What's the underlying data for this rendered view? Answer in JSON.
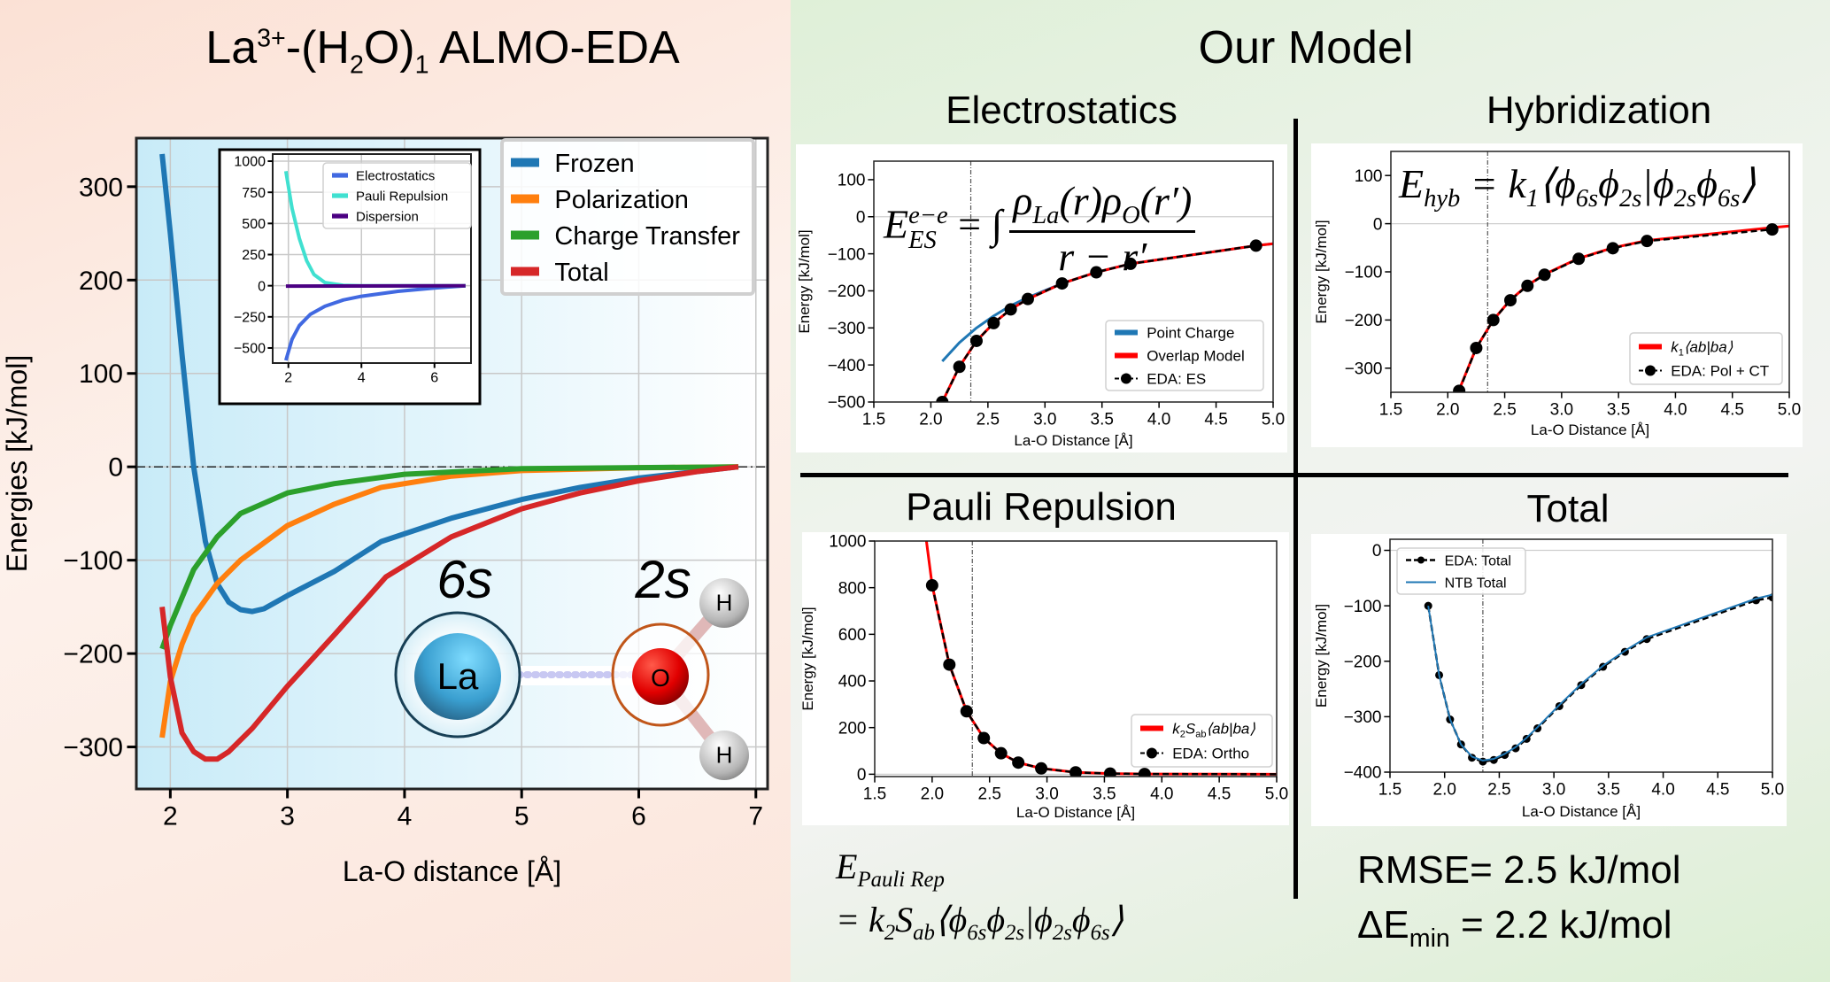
{
  "left": {
    "title_parts": {
      "a": "La",
      "charge": "3+",
      "b": "-(H",
      "h2": "2",
      "c": "O)",
      "n": "1",
      "d": " ALMO-EDA"
    },
    "illustration": {
      "la_orbital": "6s",
      "o_orbital": "2s",
      "la": "La",
      "o": "O",
      "h": "H"
    }
  },
  "right": {
    "title": "Our Model",
    "sections": {
      "electrostatics": "Electrostatics",
      "hybridization": "Hybridization",
      "pauli": "Pauli Repulsion",
      "total": "Total"
    },
    "formulas": {
      "es": {
        "E": "E",
        "sub": "ES",
        "sup": "e−e",
        "eq": "= ∫",
        "num": "ρ",
        "num_sub1": "La",
        "num_mid": "(r)ρ",
        "num_sub2": "O",
        "num_end": "(r′)",
        "den": "r − r′"
      },
      "hyb": {
        "E": "E",
        "sub": "hyb",
        "rest": " = k",
        "k_sub": "1",
        "bra": "⟨ϕ",
        "s1": "6s",
        "p2": "ϕ",
        "s2": "2s",
        "bar": "|ϕ",
        "s3": "2s",
        "p4": "ϕ",
        "s4": "6s",
        "ket": "⟩"
      },
      "pauli": {
        "E": "E",
        "sub": "Pauli Rep",
        "eq": "= k",
        "k_sub": "2",
        "S": "S",
        "S_sub": "ab",
        "bra": "⟨ϕ",
        "s1": "6s",
        "p2": "ϕ",
        "s2": "2s",
        "bar": "|ϕ",
        "s3": "2s",
        "p4": "ϕ",
        "s4": "6s",
        "ket": "⟩"
      }
    },
    "stats": {
      "rmse": "RMSE= 2.5 kJ/mol",
      "de_prefix": "ΔE",
      "de_sub": "min",
      "de_rest": " = 2.2 kJ/mol"
    }
  },
  "chart_data": [
    {
      "id": "main",
      "type": "line",
      "title": "La3+-(H2O)1 ALMO-EDA",
      "xlabel": "La-O distance [Å]",
      "ylabel": "Energies [kJ/mol]",
      "xlim": [
        1.71,
        7.1
      ],
      "ylim": [
        -345,
        352
      ],
      "grid": true,
      "hline0": "dashdot",
      "xticks": [
        "2",
        "3",
        "4",
        "5",
        "6",
        "7"
      ],
      "yticks": [
        "−300",
        "−200",
        "−100",
        "0",
        "100",
        "200",
        "300"
      ],
      "legend_position": "top-right",
      "series": [
        {
          "name": "Frozen",
          "color": "#1f77b4",
          "x": [
            1.93,
            2.0,
            2.1,
            2.2,
            2.3,
            2.4,
            2.5,
            2.6,
            2.7,
            2.8,
            3.0,
            3.4,
            3.8,
            4.4,
            5.0,
            5.5,
            6.0,
            6.5,
            6.85
          ],
          "y": [
            335,
            250,
            120,
            0,
            -80,
            -125,
            -145,
            -153,
            -155,
            -152,
            -138,
            -112,
            -80,
            -55,
            -35,
            -22,
            -12,
            -5,
            0
          ]
        },
        {
          "name": "Polarization",
          "color": "#ff7f0e",
          "x": [
            1.93,
            2.0,
            2.1,
            2.2,
            2.4,
            2.6,
            3.0,
            3.4,
            3.8,
            4.4,
            5.0,
            6.0,
            6.85
          ],
          "y": [
            -290,
            -230,
            -190,
            -160,
            -125,
            -100,
            -63,
            -40,
            -22,
            -10,
            -4,
            -1,
            0
          ]
        },
        {
          "name": "Charge Transfer",
          "color": "#2ca02c",
          "x": [
            1.93,
            2.0,
            2.2,
            2.4,
            2.6,
            3.0,
            3.4,
            4.0,
            5.0,
            6.85
          ],
          "y": [
            -195,
            -170,
            -110,
            -75,
            -50,
            -28,
            -18,
            -8,
            -2,
            0
          ]
        },
        {
          "name": "Total",
          "color": "#d62728",
          "x": [
            1.93,
            2.0,
            2.1,
            2.2,
            2.3,
            2.4,
            2.5,
            2.7,
            3.0,
            3.4,
            3.84,
            4.4,
            5.0,
            5.5,
            6.0,
            6.5,
            6.85
          ],
          "y": [
            -150,
            -225,
            -285,
            -305,
            -313,
            -313,
            -305,
            -280,
            -235,
            -180,
            -118,
            -75,
            -45,
            -28,
            -15,
            -5,
            0
          ]
        }
      ]
    },
    {
      "id": "inset",
      "type": "line",
      "xlim": [
        1.57,
        7.0
      ],
      "ylim": [
        -621,
        1057
      ],
      "grid": true,
      "xticks": [
        "2",
        "4",
        "6"
      ],
      "yticks": [
        "−500",
        "−250",
        "0",
        "250",
        "500",
        "750",
        "1000"
      ],
      "legend_position": "top-right",
      "series": [
        {
          "name": "Electrostatics",
          "color": "#4169e1",
          "x": [
            1.93,
            2.1,
            2.3,
            2.6,
            3.0,
            3.5,
            4.0,
            5.0,
            6.0,
            6.85
          ],
          "y": [
            -600,
            -430,
            -320,
            -230,
            -165,
            -115,
            -85,
            -45,
            -18,
            0
          ]
        },
        {
          "name": "Pauli Repulsion",
          "color": "#40e0d0",
          "x": [
            1.93,
            2.1,
            2.3,
            2.5,
            2.7,
            3.0,
            3.5,
            4.0,
            6.85
          ],
          "y": [
            920,
            620,
            380,
            200,
            90,
            25,
            3,
            0,
            0
          ]
        },
        {
          "name": "Dispersion",
          "color": "#4b0082",
          "x": [
            1.93,
            6.85
          ],
          "y": [
            -3,
            0
          ]
        }
      ]
    },
    {
      "id": "electrostatics",
      "type": "line",
      "xlabel": "La-O Distance [Å]",
      "ylabel": "Energy [kJ/mol]",
      "xlim": [
        1.5,
        5.0
      ],
      "ylim": [
        -500,
        150
      ],
      "vline": 2.35,
      "xticks": [
        "1.5",
        "2.0",
        "2.5",
        "3.0",
        "3.5",
        "4.0",
        "4.5",
        "5.0"
      ],
      "yticks": [
        "−500",
        "−400",
        "−300",
        "−200",
        "−100",
        "0",
        "100"
      ],
      "legend_position": "lower-right",
      "series": [
        {
          "name": "Point Charge",
          "color": "#1f77b4",
          "x": [
            2.1,
            2.25,
            2.4,
            2.55,
            2.7,
            2.85,
            3.15,
            3.45,
            3.75,
            4.85,
            5.0
          ],
          "y": [
            -390,
            -340,
            -300,
            -268,
            -240,
            -218,
            -180,
            -150,
            -127,
            -78,
            -73
          ]
        },
        {
          "name": "Overlap Model",
          "color": "#ff0000",
          "x": [
            2.1,
            2.25,
            2.4,
            2.55,
            2.7,
            2.85,
            3.15,
            3.45,
            3.75,
            4.85,
            5.0
          ],
          "y": [
            -500,
            -405,
            -335,
            -287,
            -250,
            -222,
            -180,
            -150,
            -127,
            -78,
            -73
          ]
        },
        {
          "name": "EDA: ES",
          "color": "#000000",
          "dashed": true,
          "markers": true,
          "x": [
            2.1,
            2.25,
            2.4,
            2.55,
            2.7,
            2.85,
            3.15,
            3.45,
            3.75,
            4.85
          ],
          "y": [
            -500,
            -405,
            -335,
            -287,
            -250,
            -222,
            -180,
            -150,
            -127,
            -78
          ]
        }
      ]
    },
    {
      "id": "hybridization",
      "type": "line",
      "xlabel": "La-O Distance [Å]",
      "ylabel": "Energy [kJ/mol]",
      "xlim": [
        1.5,
        5.0
      ],
      "ylim": [
        -350,
        150
      ],
      "vline": 2.35,
      "xticks": [
        "1.5",
        "2.0",
        "2.5",
        "3.0",
        "3.5",
        "4.0",
        "4.5",
        "5.0"
      ],
      "yticks": [
        "−300",
        "−200",
        "−100",
        "0",
        "100"
      ],
      "legend_position": "lower-right",
      "series": [
        {
          "name": "k1⟨ab|ba⟩",
          "label_parts": [
            [
              "k",
              ""
            ],
            [
              "1",
              "sub"
            ],
            [
              "⟨ab|ba⟩",
              ""
            ]
          ],
          "color": "#ff0000",
          "x": [
            2.1,
            2.25,
            2.4,
            2.55,
            2.7,
            2.85,
            3.15,
            3.45,
            3.75,
            4.85,
            5.0
          ],
          "y": [
            -345,
            -258,
            -200,
            -158,
            -128,
            -105,
            -72,
            -50,
            -35,
            -8,
            -5
          ]
        },
        {
          "name": "EDA: Pol + CT",
          "color": "#000000",
          "dashed": true,
          "markers": true,
          "x": [
            2.1,
            2.25,
            2.4,
            2.55,
            2.7,
            2.85,
            3.15,
            3.45,
            3.75,
            4.85
          ],
          "y": [
            -347,
            -258,
            -200,
            -159,
            -129,
            -106,
            -73,
            -51,
            -36,
            -12
          ]
        }
      ]
    },
    {
      "id": "pauli",
      "type": "line",
      "xlabel": "La-O Distance [Å]",
      "ylabel": "Energy [kJ/mol]",
      "xlim": [
        1.5,
        5.0
      ],
      "ylim": [
        -10,
        1000
      ],
      "vline": 2.35,
      "xticks": [
        "1.5",
        "2.0",
        "2.5",
        "3.0",
        "3.5",
        "4.0",
        "4.5",
        "5.0"
      ],
      "yticks": [
        "0",
        "200",
        "400",
        "600",
        "800",
        "1000"
      ],
      "legend_position": "lower-right",
      "series": [
        {
          "name": "k2Sab⟨ab|ba⟩",
          "label_parts": [
            [
              "k",
              ""
            ],
            [
              "2",
              "sub"
            ],
            [
              "S",
              ""
            ],
            [
              "ab",
              "sub"
            ],
            [
              "⟨ab|ba⟩",
              ""
            ]
          ],
          "color": "#ff0000",
          "x": [
            1.95,
            2.0,
            2.15,
            2.3,
            2.45,
            2.6,
            2.75,
            2.95,
            3.25,
            3.55,
            3.85,
            5.0
          ],
          "y": [
            1000,
            810,
            470,
            270,
            155,
            90,
            50,
            25,
            8,
            3,
            1,
            0
          ]
        },
        {
          "name": "EDA: Ortho",
          "color": "#000000",
          "dashed": true,
          "markers": true,
          "x": [
            2.0,
            2.15,
            2.3,
            2.45,
            2.6,
            2.75,
            2.95,
            3.25,
            3.55,
            3.85,
            5.0
          ],
          "y": [
            810,
            470,
            270,
            155,
            90,
            50,
            25,
            8,
            3,
            1,
            0
          ],
          "marker_count": 10
        }
      ]
    },
    {
      "id": "total",
      "type": "line",
      "xlabel": "La-O Distance [Å]",
      "ylabel": "Energy [kJ/mol]",
      "xlim": [
        1.5,
        5.0
      ],
      "ylim": [
        -400,
        20
      ],
      "vline": 2.35,
      "xticks": [
        "1.5",
        "2.0",
        "2.5",
        "3.0",
        "3.5",
        "4.0",
        "4.5",
        "5.0"
      ],
      "yticks": [
        "−400",
        "−300",
        "−200",
        "−100",
        "0"
      ],
      "legend_position": "upper-left",
      "series": [
        {
          "name": "EDA: Total",
          "color": "#000000",
          "dashed": true,
          "markers": true,
          "small_markers": true,
          "x": [
            1.85,
            1.95,
            2.05,
            2.15,
            2.25,
            2.35,
            2.45,
            2.55,
            2.65,
            2.75,
            2.85,
            3.05,
            3.25,
            3.45,
            3.65,
            3.85,
            4.85,
            5.0
          ],
          "y": [
            -100,
            -225,
            -305,
            -350,
            -374,
            -381,
            -378,
            -369,
            -357,
            -340,
            -321,
            -281,
            -243,
            -210,
            -183,
            -160,
            -90,
            -85
          ]
        },
        {
          "name": "NTB Total",
          "color": "#1f77b4",
          "thin": true,
          "x": [
            1.85,
            1.95,
            2.05,
            2.15,
            2.25,
            2.35,
            2.45,
            2.55,
            2.65,
            2.75,
            2.85,
            3.05,
            3.25,
            3.45,
            3.65,
            3.85,
            4.85,
            5.0
          ],
          "y": [
            -100,
            -225,
            -305,
            -350,
            -372,
            -379,
            -376,
            -367,
            -355,
            -338,
            -319,
            -279,
            -241,
            -208,
            -181,
            -157,
            -87,
            -80
          ]
        }
      ]
    }
  ]
}
